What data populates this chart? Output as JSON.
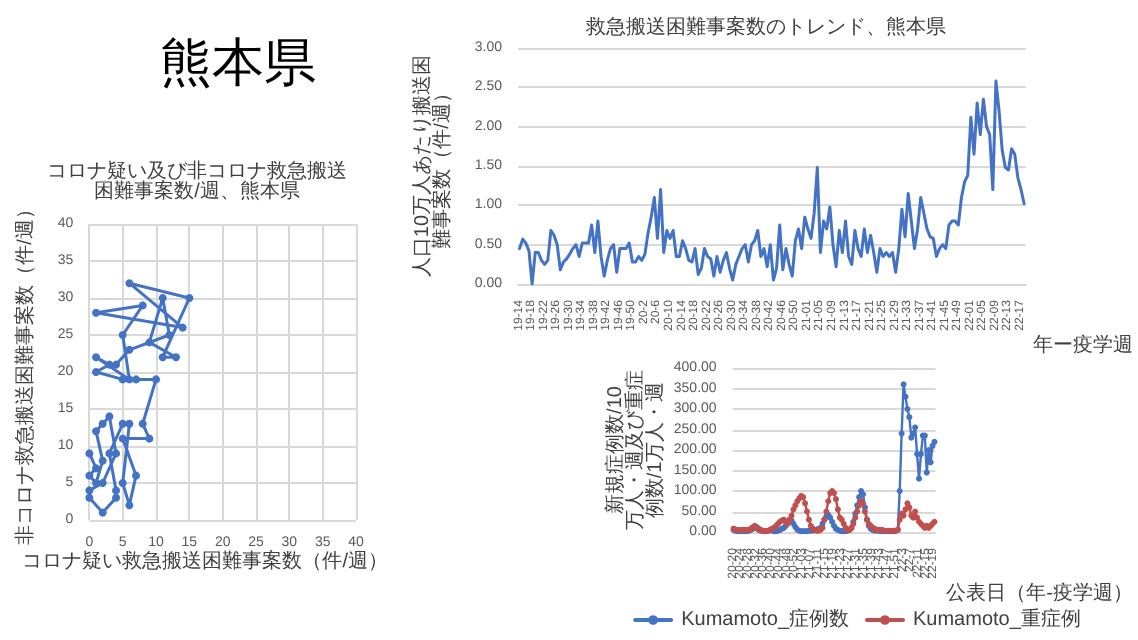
{
  "chart_data": [
    {
      "type": "line",
      "title": "コロナ疑い及び非コロナ救急搬送困難事案数/週、熊本県",
      "xlabel": "コロナ疑い救急搬送困難事案数（件/週）",
      "ylabel": "非コロナ救急搬送困難事案数（件/週）",
      "annotations": [
        "熊本県"
      ],
      "x": [
        0,
        1,
        0,
        1,
        2,
        1,
        2,
        3,
        4,
        2,
        0,
        0,
        2,
        4,
        4,
        3,
        5,
        6,
        5,
        6,
        7,
        5,
        9,
        8,
        10,
        7,
        5,
        1,
        3,
        1,
        6,
        5,
        8,
        1,
        14,
        6,
        15,
        11,
        13,
        9,
        11,
        12,
        6,
        4
      ],
      "values": [
        9,
        7,
        6,
        5,
        8,
        12,
        13,
        14,
        9,
        5,
        4,
        3,
        1,
        3,
        4,
        9,
        13,
        13,
        5,
        2,
        6,
        11,
        11,
        13,
        19,
        19,
        19,
        20,
        21,
        22,
        19,
        25,
        29,
        28,
        26,
        32,
        30,
        22,
        22,
        24,
        30,
        25,
        23,
        21
      ],
      "color": "#4472c4",
      "marker": "circle",
      "line_style": "solid",
      "xlim": [
        0,
        40
      ],
      "xticks": [
        0,
        5,
        10,
        15,
        20,
        25,
        30,
        35,
        40
      ],
      "ylim": [
        0,
        40
      ],
      "yticks": [
        0,
        5,
        10,
        15,
        20,
        25,
        30,
        35,
        40
      ],
      "grid": true
    },
    {
      "type": "line",
      "title": "救急搬送困難事案数のトレンド、熊本県",
      "xlabel": "年ー疫学週",
      "ylabel": "人口10万人あたり搬送困難事案数（件/週）",
      "categories": [
        "19-14",
        null,
        null,
        null,
        "19-18",
        null,
        null,
        null,
        "19-22",
        null,
        null,
        null,
        "19-26",
        null,
        null,
        null,
        "19-30",
        null,
        null,
        null,
        "19-34",
        null,
        null,
        null,
        "19-38",
        null,
        null,
        null,
        "19-42",
        null,
        null,
        null,
        "19-46",
        null,
        null,
        null,
        "19-50",
        null,
        null,
        null,
        "20-2",
        null,
        null,
        null,
        "20-6",
        null,
        null,
        null,
        "20-10",
        null,
        null,
        null,
        "20-14",
        null,
        null,
        null,
        "20-18",
        null,
        null,
        null,
        "20-22",
        null,
        null,
        null,
        "20-26",
        null,
        null,
        null,
        "20-30",
        null,
        null,
        null,
        "20-34",
        null,
        null,
        null,
        "20-38",
        null,
        null,
        null,
        "20-42",
        null,
        null,
        null,
        "20-46",
        null,
        null,
        null,
        "20-50",
        null,
        null,
        null,
        "21-01",
        null,
        null,
        null,
        "21-05",
        null,
        null,
        null,
        "21-09",
        null,
        null,
        null,
        "21-13",
        null,
        null,
        null,
        "21-17",
        null,
        null,
        null,
        "21-21",
        null,
        null,
        null,
        "21-25",
        null,
        null,
        null,
        "21-29",
        null,
        null,
        null,
        "21-33",
        null,
        null,
        null,
        "21-37",
        null,
        null,
        null,
        "21-41",
        null,
        null,
        null,
        "21-45",
        null,
        null,
        null,
        "21-49",
        null,
        null,
        null,
        "22-01",
        null,
        null,
        null,
        "22-05",
        null,
        null,
        null,
        "22-09",
        null,
        null,
        null,
        "22-13",
        null,
        null,
        null,
        "22-17",
        null
      ],
      "values": [
        0.45,
        0.57,
        0.52,
        0.42,
        0.0,
        0.4,
        0.4,
        0.3,
        0.25,
        0.3,
        0.68,
        0.62,
        0.5,
        0.18,
        0.28,
        0.32,
        0.38,
        0.45,
        0.5,
        0.35,
        0.52,
        0.52,
        0.52,
        0.75,
        0.4,
        0.8,
        0.35,
        0.1,
        0.3,
        0.45,
        0.5,
        0.15,
        0.45,
        0.45,
        0.45,
        0.52,
        0.28,
        0.28,
        0.35,
        0.3,
        0.38,
        0.65,
        0.85,
        1.1,
        0.58,
        1.2,
        0.4,
        0.68,
        0.58,
        0.68,
        0.35,
        0.35,
        0.55,
        0.45,
        0.3,
        0.28,
        0.45,
        0.12,
        0.2,
        0.45,
        0.35,
        0.32,
        0.1,
        0.35,
        0.15,
        0.3,
        0.4,
        0.2,
        0.05,
        0.25,
        0.35,
        0.45,
        0.5,
        0.28,
        0.5,
        0.55,
        0.68,
        0.35,
        0.45,
        0.22,
        0.5,
        0.05,
        0.2,
        0.75,
        0.18,
        0.45,
        0.25,
        0.1,
        0.55,
        0.7,
        0.45,
        0.85,
        0.7,
        0.58,
        0.9,
        1.48,
        0.4,
        0.8,
        0.7,
        0.98,
        0.5,
        0.22,
        0.68,
        0.4,
        0.8,
        0.35,
        0.25,
        0.68,
        0.45,
        0.35,
        0.7,
        0.4,
        0.62,
        0.4,
        0.15,
        0.45,
        0.35,
        0.4,
        0.35,
        0.4,
        0.15,
        0.45,
        0.95,
        0.6,
        1.15,
        0.8,
        0.45,
        0.7,
        1.1,
        0.9,
        0.7,
        0.6,
        0.58,
        0.35,
        0.45,
        0.5,
        0.45,
        0.75,
        0.8,
        0.8,
        0.75,
        1.1,
        1.3,
        1.38,
        2.12,
        1.65,
        2.3,
        1.9,
        2.35,
        2.0,
        1.9,
        1.2,
        2.58,
        2.2,
        1.7,
        1.48,
        1.45,
        1.72,
        1.65,
        1.35,
        1.2,
        1.02
      ],
      "color": "#4472c4",
      "line_style": "solid",
      "ylim": [
        0,
        3
      ],
      "yticks": [
        {
          "value": 0,
          "label": "0.00"
        },
        {
          "value": 0.5,
          "label": "0.50"
        },
        {
          "value": 1,
          "label": "1.00"
        },
        {
          "value": 1.5,
          "label": "1.50"
        },
        {
          "value": 2,
          "label": "2.00"
        },
        {
          "value": 2.5,
          "label": "2.50"
        },
        {
          "value": 3,
          "label": "3.00"
        }
      ],
      "grid": "y"
    },
    {
      "type": "line",
      "xlabel": "公表日（年-疫学週）",
      "ylabel": "新規症例数/10万人・週及び重症例数/1万人・週",
      "categories": [
        "20-20",
        null,
        null,
        null,
        "20-24",
        null,
        null,
        null,
        "20-28",
        null,
        null,
        null,
        "20-32",
        null,
        null,
        null,
        "20-36",
        null,
        null,
        null,
        "20-40",
        null,
        null,
        null,
        "20-44",
        null,
        null,
        null,
        "20-48",
        null,
        null,
        null,
        "20-52",
        null,
        null,
        null,
        "21-03",
        null,
        null,
        null,
        "21-07",
        null,
        null,
        null,
        "21-11",
        null,
        null,
        null,
        "21-15",
        null,
        null,
        null,
        "21-19",
        null,
        null,
        null,
        "21-23",
        null,
        null,
        null,
        "21-27",
        null,
        null,
        null,
        "21-31",
        null,
        null,
        null,
        "21-35",
        null,
        null,
        null,
        "21-39",
        null,
        null,
        null,
        "21-43",
        null,
        null,
        null,
        "21-47",
        null,
        null,
        null,
        "21-51",
        null,
        null,
        null,
        "22-3",
        null,
        null,
        null,
        "22-7",
        null,
        null,
        null,
        "22-11",
        null,
        null,
        null,
        "22-15",
        null,
        null,
        null,
        "22-19"
      ],
      "series": [
        {
          "name": "Kumamoto_症例数",
          "color": "#4472c4",
          "values": [
            5,
            3,
            2,
            2,
            2,
            2,
            2,
            2,
            3,
            5,
            8,
            10,
            12,
            8,
            5,
            3,
            2,
            2,
            3,
            5,
            3,
            2,
            2,
            3,
            5,
            8,
            10,
            15,
            22,
            30,
            28,
            20,
            12,
            6,
            3,
            2,
            2,
            2,
            2,
            3,
            3,
            3,
            5,
            5,
            8,
            10,
            20,
            30,
            38,
            42,
            35,
            25,
            15,
            8,
            5,
            3,
            2,
            2,
            2,
            3,
            5,
            10,
            25,
            45,
            65,
            85,
            100,
            92,
            60,
            30,
            15,
            8,
            5,
            3,
            3,
            3,
            2,
            2,
            2,
            2,
            2,
            2,
            2,
            2,
            3,
            5,
            100,
            240,
            360,
            330,
            300,
            280,
            230,
            240,
            255,
            190,
            130,
            190,
            235,
            235,
            145,
            200,
            170,
            210,
            220
          ]
        },
        {
          "name": "Kumamoto_重症例",
          "color": "#c0504d",
          "values": [
            8,
            6,
            5,
            5,
            5,
            5,
            5,
            5,
            5,
            8,
            12,
            15,
            10,
            5,
            3,
            3,
            3,
            3,
            3,
            5,
            8,
            10,
            15,
            20,
            25,
            28,
            30,
            25,
            20,
            30,
            40,
            55,
            65,
            75,
            82,
            88,
            85,
            70,
            50,
            30,
            15,
            8,
            5,
            3,
            3,
            5,
            10,
            30,
            50,
            75,
            95,
            100,
            95,
            80,
            55,
            35,
            30,
            20,
            10,
            5,
            5,
            10,
            20,
            35,
            50,
            65,
            75,
            70,
            50,
            30,
            20,
            15,
            10,
            8,
            5,
            5,
            5,
            5,
            3,
            3,
            3,
            3,
            3,
            3,
            3,
            5,
            30,
            45,
            40,
            55,
            70,
            60,
            40,
            35,
            50,
            35,
            25,
            20,
            15,
            10,
            15,
            10,
            15,
            20,
            25
          ]
        }
      ],
      "marker": "circle",
      "line_style": "solid",
      "legend": "bottom",
      "ylim": [
        0,
        400
      ],
      "yticks": [
        {
          "value": 0,
          "label": "0.00"
        },
        {
          "value": 50,
          "label": "50.00"
        },
        {
          "value": 100,
          "label": "100.00"
        },
        {
          "value": 150,
          "label": "150.00"
        },
        {
          "value": 200,
          "label": "200.00"
        },
        {
          "value": 250,
          "label": "250.00"
        },
        {
          "value": 300,
          "label": "300.00"
        },
        {
          "value": 350,
          "label": "350.00"
        },
        {
          "value": 400,
          "label": "400.00"
        }
      ],
      "grid": "y"
    }
  ]
}
